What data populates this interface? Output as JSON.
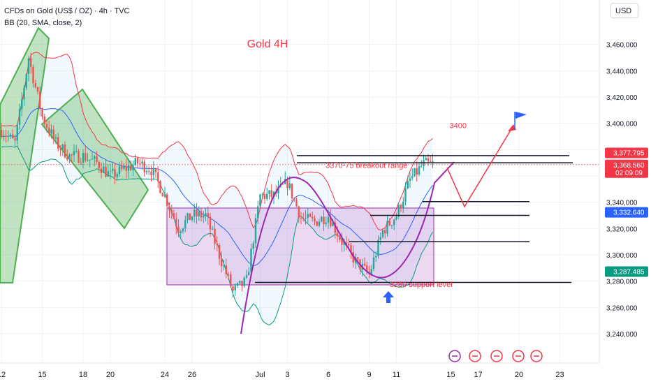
{
  "header": {
    "symbol_line": "CFDs on Gold (US$ / OZ) · 4h · TVC",
    "indicator_line": "BB (20, SMA, close, 2)",
    "currency_button": "USD"
  },
  "colors": {
    "up": "#26a69a",
    "down": "#ef5350",
    "bb_upper": "#f23645",
    "bb_basis": "#2962ff",
    "bb_lower": "#089981",
    "annotation": "#f23645",
    "range_box": "#9c27b0",
    "triangle": "#4caf50"
  },
  "chart_data": {
    "type": "candlestick",
    "title": "Gold 4H",
    "ylim": [
      3235,
      3480
    ],
    "y_ticks": [
      3240,
      3260,
      3280,
      3300,
      3320,
      3340,
      3360,
      3380,
      3400,
      3420,
      3440,
      3460
    ],
    "y_tick_labels": [
      "3,240,000",
      "3,260,000",
      "3,280,000",
      "3,300,000",
      "3,320,000",
      "3,340,000",
      "",
      "",
      "3,400,000",
      "3,420,000",
      "3,440,000",
      "3,460,000"
    ],
    "x_ticks": [
      {
        "label": "12",
        "d": 0
      },
      {
        "label": "15",
        "d": 3
      },
      {
        "label": "18",
        "d": 6
      },
      {
        "label": "20",
        "d": 8
      },
      {
        "label": "24",
        "d": 12
      },
      {
        "label": "26",
        "d": 14
      },
      {
        "label": "Jul",
        "d": 19
      },
      {
        "label": "3",
        "d": 21
      },
      {
        "label": "6",
        "d": 24
      },
      {
        "label": "9",
        "d": 27
      },
      {
        "label": "11",
        "d": 29
      },
      {
        "label": "15",
        "d": 33
      },
      {
        "label": "17",
        "d": 35
      },
      {
        "label": "20",
        "d": 38
      },
      {
        "label": "23",
        "d": 41
      }
    ],
    "series": [
      {
        "name": "Price",
        "points": [
          [
            0,
            3395
          ],
          [
            1,
            3385
          ],
          [
            2,
            3450
          ],
          [
            3,
            3405
          ],
          [
            4,
            3385
          ],
          [
            5,
            3375
          ],
          [
            6,
            3375
          ],
          [
            7,
            3370
          ],
          [
            8,
            3360
          ],
          [
            9,
            3365
          ],
          [
            10,
            3370
          ],
          [
            11,
            3365
          ],
          [
            12,
            3345
          ],
          [
            13,
            3320
          ],
          [
            14,
            3330
          ],
          [
            15,
            3330
          ],
          [
            16,
            3300
          ],
          [
            17,
            3272
          ],
          [
            18,
            3280
          ],
          [
            19,
            3345
          ],
          [
            20,
            3345
          ],
          [
            21,
            3355
          ],
          [
            22,
            3328
          ],
          [
            23,
            3325
          ],
          [
            24,
            3330
          ],
          [
            25,
            3310
          ],
          [
            26,
            3295
          ],
          [
            27,
            3285
          ],
          [
            28,
            3318
          ],
          [
            29,
            3330
          ],
          [
            30,
            3357
          ],
          [
            31,
            3369
          ]
        ]
      }
    ],
    "price_labels": [
      {
        "value": "3,377.795",
        "y": 3377.8,
        "color": "#f23645"
      },
      {
        "value": "3,368.560",
        "y": 3368.6,
        "color": "#f23645",
        "sub": "02:09:09"
      },
      {
        "value": "3,332.640",
        "y": 3332.6,
        "color": "#2962ff"
      },
      {
        "value": "3,287.485",
        "y": 3287.5,
        "color": "#089981"
      }
    ],
    "annotations": [
      {
        "text": "3370-75 breakout range",
        "d": 23.8,
        "y": 3366
      },
      {
        "text": "3280 support level",
        "d": 28.5,
        "y": 3275.6
      },
      {
        "text": "3400",
        "d": 32.9,
        "y": 3396.5
      }
    ]
  }
}
